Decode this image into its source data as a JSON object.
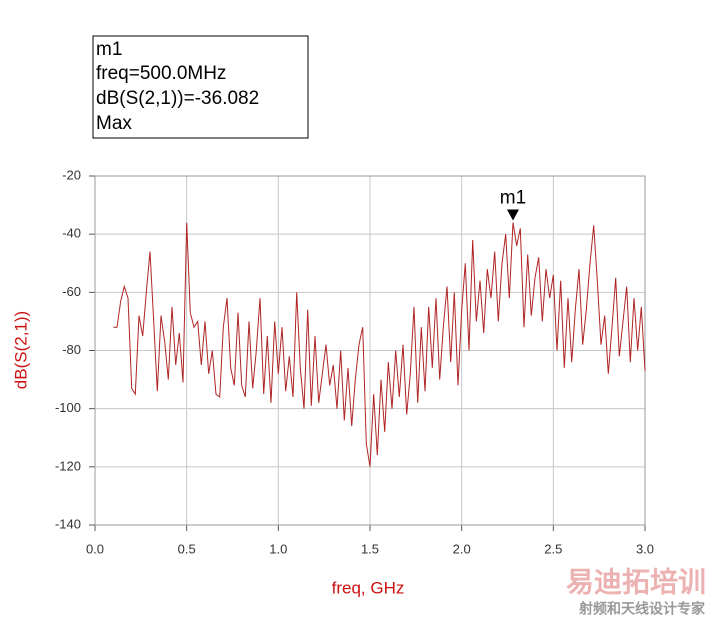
{
  "chart_data": {
    "type": "line",
    "xlabel": "freq, GHz",
    "ylabel": "dB(S(2,1))",
    "marker": {
      "name": "m1",
      "freq": "freq=500.0MHz",
      "readout": "dB(S(2,1))=-36.082",
      "mode": "Max"
    },
    "watermark": {
      "title": "易迪拓培训",
      "subtitle": "射频和天线设计专家"
    },
    "xlim": [
      0,
      3
    ],
    "ylim": [
      -140,
      -20
    ],
    "xticks": [
      {
        "value": 0,
        "label": "0.0"
      },
      0.5,
      {
        "value": 1,
        "label": "1.0"
      },
      1.5,
      {
        "value": 2,
        "label": "2.0"
      },
      2.5,
      {
        "value": 3,
        "label": "3.0"
      }
    ],
    "yticks": [
      -140,
      -120,
      -100,
      -80,
      -60,
      -40,
      -20
    ],
    "grid": true,
    "x": [
      0.1,
      0.12,
      0.14,
      0.16,
      0.18,
      0.2,
      0.22,
      0.24,
      0.26,
      0.28,
      0.3,
      0.32,
      0.34,
      0.36,
      0.38,
      0.4,
      0.42,
      0.44,
      0.46,
      0.48,
      0.5,
      0.52,
      0.54,
      0.56,
      0.58,
      0.6,
      0.62,
      0.64,
      0.66,
      0.68,
      0.7,
      0.72,
      0.74,
      0.76,
      0.78,
      0.8,
      0.82,
      0.84,
      0.86,
      0.88,
      0.9,
      0.92,
      0.94,
      0.96,
      0.98,
      1.0,
      1.02,
      1.04,
      1.06,
      1.08,
      1.1,
      1.12,
      1.14,
      1.16,
      1.18,
      1.2,
      1.22,
      1.24,
      1.26,
      1.28,
      1.3,
      1.32,
      1.34,
      1.36,
      1.38,
      1.4,
      1.42,
      1.44,
      1.46,
      1.48,
      1.5,
      1.52,
      1.54,
      1.56,
      1.58,
      1.6,
      1.62,
      1.64,
      1.66,
      1.68,
      1.7,
      1.72,
      1.74,
      1.76,
      1.78,
      1.8,
      1.82,
      1.84,
      1.86,
      1.88,
      1.9,
      1.92,
      1.94,
      1.96,
      1.98,
      2.0,
      2.02,
      2.04,
      2.06,
      2.08,
      2.1,
      2.12,
      2.14,
      2.16,
      2.18,
      2.2,
      2.22,
      2.24,
      2.26,
      2.28,
      2.3,
      2.32,
      2.34,
      2.36,
      2.38,
      2.4,
      2.42,
      2.44,
      2.46,
      2.48,
      2.5,
      2.52,
      2.54,
      2.56,
      2.58,
      2.6,
      2.62,
      2.64,
      2.66,
      2.68,
      2.7,
      2.72,
      2.74,
      2.76,
      2.78,
      2.8,
      2.82,
      2.84,
      2.86,
      2.88,
      2.9,
      2.92,
      2.94,
      2.96,
      2.98,
      3.0
    ],
    "series": [
      {
        "color": "#b02424",
        "values": [
          -72,
          -72,
          -63,
          -58,
          -62,
          -93,
          -95,
          -68,
          -75,
          -60,
          -46,
          -70,
          -94,
          -68,
          -77,
          -90,
          -65,
          -85,
          -74,
          -91,
          -36.082,
          -67,
          -72,
          -70,
          -85,
          -70,
          -88,
          -80,
          -95,
          -96,
          -72,
          -62,
          -86,
          -92,
          -67,
          -92,
          -96,
          -70,
          -93,
          -80,
          -62,
          -95,
          -75,
          -98,
          -70,
          -88,
          -72,
          -94,
          -82,
          -96,
          -60,
          -86,
          -100,
          -66,
          -99,
          -75,
          -98,
          -88,
          -78,
          -92,
          -85,
          -100,
          -80,
          -104,
          -86,
          -106,
          -90,
          -78,
          -72,
          -112,
          -120,
          -95,
          -116,
          -90,
          -108,
          -84,
          -100,
          -80,
          -96,
          -78,
          -102,
          -88,
          -65,
          -98,
          -72,
          -94,
          -65,
          -86,
          -62,
          -90,
          -72,
          -58,
          -84,
          -60,
          -92,
          -66,
          -50,
          -80,
          -42,
          -70,
          -56,
          -74,
          -52,
          -62,
          -46,
          -70,
          -50,
          -40,
          -62,
          -36,
          -44,
          -38,
          -72,
          -47,
          -68,
          -55,
          -48,
          -70,
          -52,
          -62,
          -54,
          -80,
          -56,
          -86,
          -62,
          -84,
          -66,
          -52,
          -78,
          -66,
          -50,
          -37,
          -56,
          -78,
          -68,
          -88,
          -72,
          -55,
          -82,
          -70,
          -58,
          -84,
          -62,
          -80,
          -65,
          -87
        ]
      }
    ]
  }
}
